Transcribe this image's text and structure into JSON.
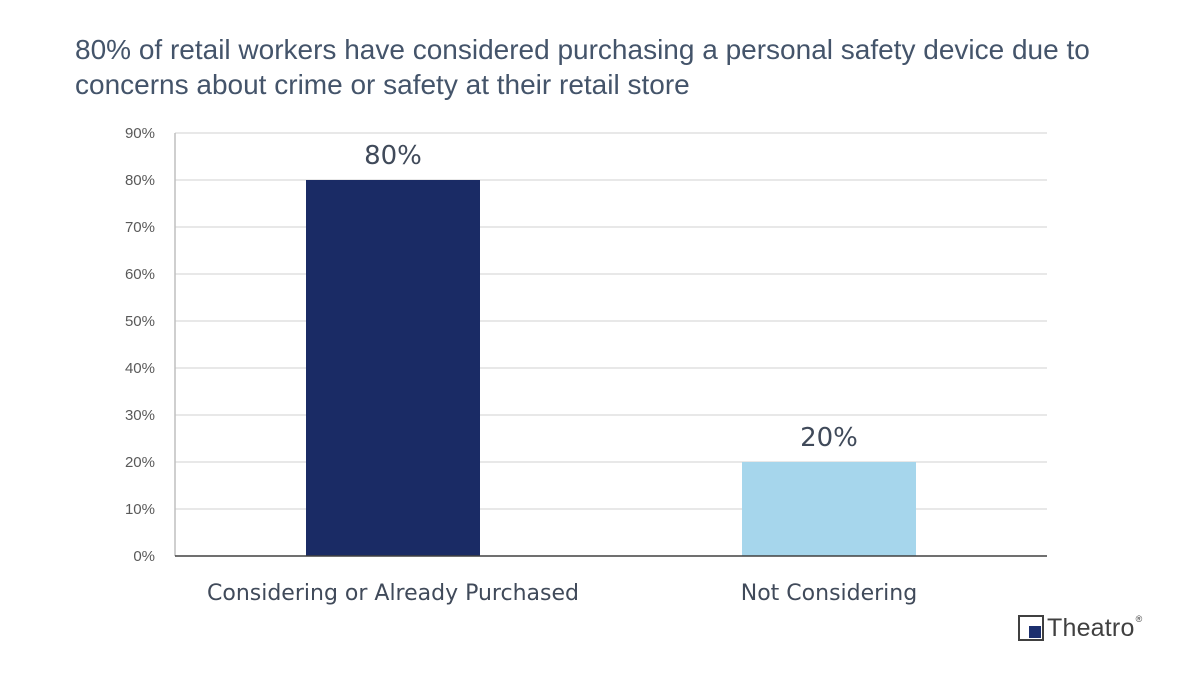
{
  "chart_data": {
    "type": "bar",
    "title": "80% of retail workers have considered purchasing a personal safety device due to concerns about crime or safety at their retail store",
    "categories": [
      "Considering or Already Purchased",
      "Not Considering"
    ],
    "values": [
      80,
      20
    ],
    "data_labels": [
      "80%",
      "20%"
    ],
    "bar_colors": [
      "#1a2b65",
      "#a6d6ec"
    ],
    "ylim": [
      0,
      90
    ],
    "yticks": [
      "0%",
      "10%",
      "20%",
      "30%",
      "40%",
      "50%",
      "60%",
      "70%",
      "80%",
      "90%"
    ],
    "xlabel": "",
    "ylabel": "",
    "grid": true,
    "legend": "none"
  },
  "logo": {
    "text": "Theatro",
    "mark": "®"
  }
}
